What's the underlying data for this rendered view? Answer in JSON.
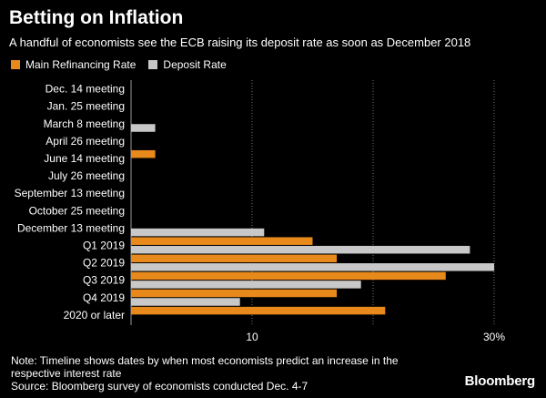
{
  "header": {
    "title": "Betting on Inflation",
    "subtitle": "A handful of economists see the ECB raising its deposit rate as soon as December 2018"
  },
  "legend": [
    {
      "label": "Main Refinancing Rate",
      "color": "#E8891C"
    },
    {
      "label": "Deposit Rate",
      "color": "#C8C8C8"
    }
  ],
  "chart_data": {
    "type": "bar",
    "orientation": "horizontal",
    "categories": [
      "Dec. 14 meeting",
      "Jan. 25 meeting",
      "March 8 meeting",
      "April 26 meeting",
      "June 14 meeting",
      "July 26 meeting",
      "September 13 meeting",
      "October 25 meeting",
      "December 13 meeting",
      "Q1 2019",
      "Q2 2019",
      "Q3 2019",
      "Q4 2019",
      "2020 or later"
    ],
    "series": [
      {
        "name": "Main Refinancing Rate",
        "color": "#E8891C",
        "values": [
          0,
          0,
          0,
          0,
          1,
          0,
          0,
          0,
          0,
          7.5,
          8.5,
          13,
          8.5,
          10.5
        ]
      },
      {
        "name": "Deposit Rate",
        "color": "#C8C8C8",
        "values": [
          0,
          0,
          1,
          0,
          0,
          0,
          0,
          0,
          5.5,
          14,
          15,
          9.5,
          4.5,
          0
        ]
      }
    ],
    "xlim": [
      0,
      15
    ],
    "xticks": [
      {
        "value": 5,
        "label": "10"
      },
      {
        "value": 10,
        "label": ""
      },
      {
        "value": 15,
        "label": "30%"
      }
    ],
    "grid": true
  },
  "footer": {
    "note": "Note: Timeline shows dates by when most economists predict an increase in the respective interest rate",
    "source": "Source: Bloomberg survey of economists conducted Dec. 4-7",
    "brand": "Bloomberg"
  }
}
